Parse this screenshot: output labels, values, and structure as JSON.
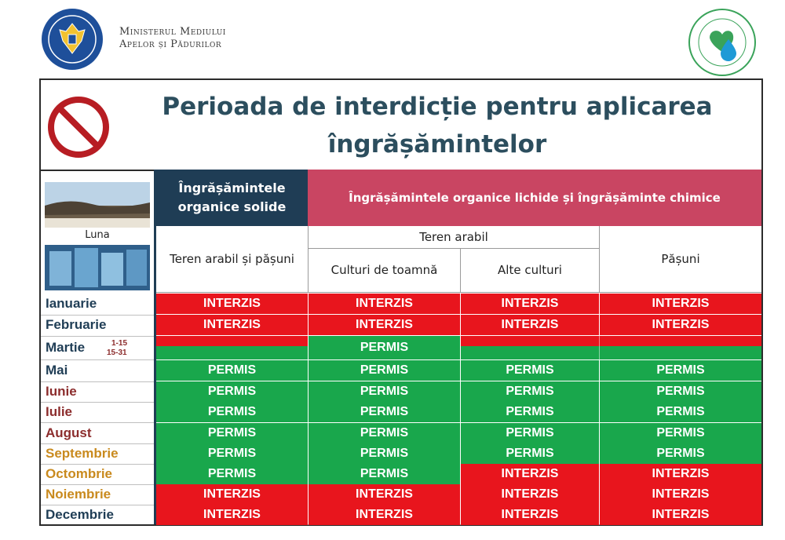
{
  "header": {
    "ministry_line1": "Ministerul Mediului",
    "ministry_line2": "Apelor și Pădurilor",
    "crest_icon": "romanian-government-crest-icon",
    "seal_icon": "environment-seal-icon"
  },
  "title": {
    "line1": "Perioada de interdicție pentru aplicarea",
    "line2": "îngrășămintelor"
  },
  "left": {
    "luna_label": "Luna"
  },
  "columns": {
    "solid_header": "Îngrășămintele organice solide",
    "liquid_header": "Îngrășămintele organice lichide și îngrășăminte chimice",
    "teren_arabil_pasuni": "Teren arabil și pășuni",
    "teren_arabil": "Teren arabil",
    "culturi_toamna": "Culturi de toamnă",
    "alte_culturi": "Alte culturi",
    "pasuni": "Pășuni"
  },
  "status": {
    "interzis": "INTERZIS",
    "permis": "PERMIS"
  },
  "months": [
    {
      "name": "Ianuarie",
      "color": "#1f3d55"
    },
    {
      "name": "Februarie",
      "color": "#1f3d55"
    },
    {
      "name": "Martie",
      "color": "#1f3d55",
      "sub1": "1-15",
      "sub2": "15-31"
    },
    {
      "name": "Mai",
      "color": "#1f3d55"
    },
    {
      "name": "Iunie",
      "color": "#8c2d2d"
    },
    {
      "name": "Iulie",
      "color": "#8c2d2d"
    },
    {
      "name": "August",
      "color": "#8c2d2d"
    },
    {
      "name": "Septembrie",
      "color": "#c98a1e"
    },
    {
      "name": "Octombrie",
      "color": "#c98a1e"
    },
    {
      "name": "Noiembrie",
      "color": "#c98a1e"
    },
    {
      "name": "Decembrie",
      "color": "#1f3d55"
    }
  ],
  "colors": {
    "interzis": "#e8151d",
    "permis": "#19a74c",
    "navy": "#1f3d55",
    "rose": "#c94562"
  }
}
